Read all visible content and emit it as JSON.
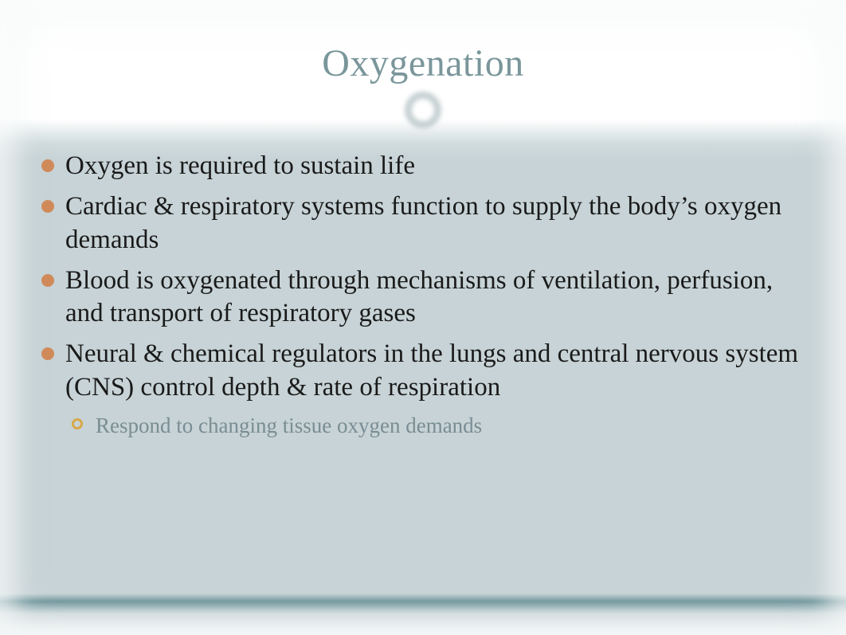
{
  "slide": {
    "title": "Oxygenation",
    "title_color": "#7a969b",
    "title_fontsize": 48,
    "background": {
      "header_color": "#ffffff",
      "body_color": "#c7d3d6",
      "accent_band_color": "#6a9298",
      "ring_ornament_color": "#b8c5c8"
    },
    "body_text_color": "#1a1a1a",
    "sub_text_color": "#7a8d94",
    "bullet_color_l1": "#d08a5a",
    "bullet_color_l2": "#d8a84a",
    "body_fontsize_l1": 33,
    "body_fontsize_l2": 27,
    "bullets": [
      {
        "level": 1,
        "text": "Oxygen is required to sustain life"
      },
      {
        "level": 1,
        "text": "Cardiac & respiratory systems function to supply the body’s oxygen demands"
      },
      {
        "level": 1,
        "text": "Blood is oxygenated through mechanisms of ventilation, perfusion, and transport of respiratory gases"
      },
      {
        "level": 1,
        "text": "Neural & chemical regulators in the lungs and central nervous system (CNS) control depth & rate of respiration"
      },
      {
        "level": 2,
        "text": "Respond to changing tissue oxygen demands"
      }
    ]
  }
}
